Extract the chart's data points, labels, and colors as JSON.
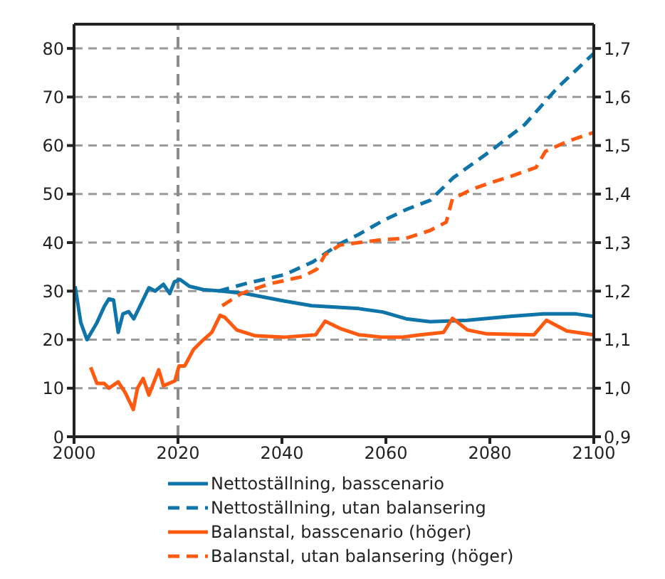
{
  "chart_data": {
    "type": "line",
    "xlim": [
      2000,
      2100
    ],
    "xticks": [
      2000,
      2020,
      2040,
      2060,
      2080,
      2100
    ],
    "ylim": [
      0,
      85
    ],
    "yticks": [
      0,
      10,
      20,
      30,
      40,
      50,
      60,
      70,
      80
    ],
    "y2lim": [
      0.9,
      1.75
    ],
    "y2ticks": [
      {
        "value": 0.9,
        "label": "0,9"
      },
      {
        "value": 1.0,
        "label": "1,0"
      },
      {
        "value": 1.1,
        "label": "1,1"
      },
      {
        "value": 1.2,
        "label": "1,2"
      },
      {
        "value": 1.3,
        "label": "1,3"
      },
      {
        "value": 1.4,
        "label": "1,4"
      },
      {
        "value": 1.5,
        "label": "1,5"
      },
      {
        "value": 1.6,
        "label": "1,6"
      },
      {
        "value": 1.7,
        "label": "1,7"
      }
    ],
    "grid": "y",
    "legend": "bottom",
    "marker": "none",
    "ref_lines": [
      {
        "axis": "x",
        "value": 2020,
        "color": "#8c8c8c",
        "line_style": "dashed"
      }
    ],
    "series": [
      {
        "name": "Nettoställning, basscenario",
        "color": "#0f75a8",
        "line_style": "solid",
        "x": [
          2000.2,
          2001.3,
          2002.5,
          2004.4,
          2005.8,
          2006.7,
          2007.6,
          2008.5,
          2009.4,
          2010.5,
          2011.5,
          2013,
          2014.4,
          2015.6,
          2017.2,
          2018.4,
          2019.3,
          2020.4,
          2022.2,
          2024.9,
          2028.5,
          2033,
          2040.3,
          2045.7,
          2054.8,
          2059.4,
          2063.9,
          2068.5,
          2075.7,
          2083.9,
          2090.3,
          2096.6,
          2100
        ],
        "values": [
          31,
          23.5,
          20,
          23.5,
          26.8,
          28.4,
          28.2,
          21.5,
          25.3,
          25.8,
          24.3,
          27.6,
          30.7,
          30,
          31.4,
          29.5,
          31.9,
          32.4,
          31,
          30.3,
          30,
          29.5,
          28,
          27,
          26.4,
          25.7,
          24.3,
          23.7,
          24,
          24.8,
          25.3,
          25.3,
          24.8
        ]
      },
      {
        "name": "Nettoställning, utan balansering",
        "color": "#0f75a8",
        "line_style": "dashed",
        "x": [
          2027.7,
          2033.2,
          2040.5,
          2045.9,
          2051.2,
          2054.8,
          2059.4,
          2063.9,
          2068.5,
          2073,
          2080.3,
          2086.7,
          2093,
          2100
        ],
        "values": [
          30,
          31.6,
          33.4,
          36,
          39.8,
          41.7,
          44.5,
          46.8,
          48.7,
          53.4,
          59,
          64.3,
          71.9,
          79
        ]
      },
      {
        "name": "Balanstal, basscenario (höger)",
        "color": "#ff5a0f",
        "line_style": "solid",
        "axis": "y2",
        "x": [
          2003.2,
          2004.4,
          2005.8,
          2006.7,
          2008.5,
          2009.9,
          2011.4,
          2012.2,
          2013.3,
          2014.4,
          2016.3,
          2017.2,
          2019.4,
          2020.2,
          2021.3,
          2023,
          2024.9,
          2026.5,
          2028.1,
          2029,
          2031.3,
          2034.9,
          2040.3,
          2046.5,
          2048.3,
          2051.2,
          2054.8,
          2059.4,
          2063,
          2066.6,
          2071.1,
          2072.8,
          2075.7,
          2079.4,
          2088.5,
          2090.9,
          2094.8,
          2100
        ],
        "values": [
          1.043,
          1.01,
          1.01,
          1.0,
          1.013,
          0.99,
          0.956,
          1.0,
          1.02,
          0.986,
          1.038,
          1.005,
          1.015,
          1.046,
          1.046,
          1.08,
          1.1,
          1.115,
          1.15,
          1.146,
          1.12,
          1.108,
          1.105,
          1.11,
          1.138,
          1.123,
          1.11,
          1.105,
          1.105,
          1.11,
          1.115,
          1.144,
          1.12,
          1.112,
          1.11,
          1.14,
          1.118,
          1.11
        ]
      },
      {
        "name": "Balanstal, utan balansering  (höger)",
        "color": "#ff5a0f",
        "line_style": "dashed",
        "axis": "y2",
        "x": [
          2028.5,
          2032.2,
          2037.6,
          2044,
          2046.7,
          2048.3,
          2051.2,
          2054.8,
          2059.4,
          2063.9,
          2068.5,
          2071.6,
          2072.8,
          2076.6,
          2080.3,
          2083.9,
          2088.9,
          2090.7,
          2094.8,
          2100
        ],
        "values": [
          1.17,
          1.195,
          1.215,
          1.23,
          1.245,
          1.275,
          1.295,
          1.3,
          1.306,
          1.309,
          1.325,
          1.342,
          1.39,
          1.41,
          1.424,
          1.436,
          1.455,
          1.488,
          1.508,
          1.527
        ]
      }
    ]
  }
}
